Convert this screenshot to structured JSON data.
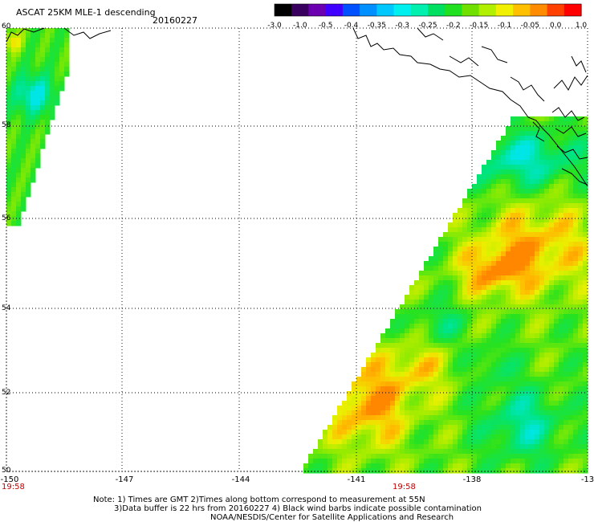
{
  "header": {
    "title": "ASCAT 25KM MLE-1 descending",
    "date": "20160227"
  },
  "colorbar": {
    "colors": [
      "#000000",
      "#3a0060",
      "#6a00b0",
      "#4000ff",
      "#0050ff",
      "#0090ff",
      "#00c8ff",
      "#00f0f0",
      "#00f0b0",
      "#00e060",
      "#20e020",
      "#70e000",
      "#b0f000",
      "#f0f000",
      "#ffc000",
      "#ff8c00",
      "#ff4000",
      "#ff0000"
    ],
    "labels": [
      "-3.0",
      "-1.0",
      "-0.5",
      "-0.4",
      "-0.35",
      "-0.3",
      "-0.25",
      "-0.2",
      "-0.15",
      "-0.1",
      "-0.05",
      "0.0",
      "1.0"
    ]
  },
  "axes": {
    "lat_labels": [
      "60",
      "58",
      "56",
      "54",
      "52",
      "50"
    ],
    "lon_labels": [
      "-150",
      "-147",
      "-144",
      "-141",
      "-138",
      "-13"
    ]
  },
  "times": [
    "19:58",
    "19:58"
  ],
  "notes": [
    "Note: 1) Times are GMT 2)Times along bottom correspond to measurement at 55N",
    "3)Data buffer is 22 hrs from 20160227 4) Black wind barbs indicate possible contamination",
    "NOAA/NESDIS/Center for Satellite Applications and Research"
  ]
}
